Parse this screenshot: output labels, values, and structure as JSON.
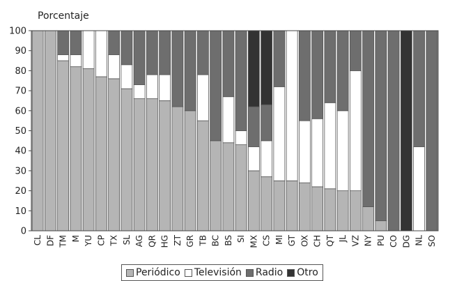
{
  "chart_data": {
    "type": "bar",
    "stacked": true,
    "ylabel": "Porcentaje",
    "ylim": [
      0,
      100
    ],
    "yticks": [
      0,
      10,
      20,
      30,
      40,
      50,
      60,
      70,
      80,
      90,
      100
    ],
    "categories": [
      "CL",
      "DF",
      "TM",
      "M",
      "YU",
      "CP",
      "TX",
      "SL",
      "AG",
      "QR",
      "HG",
      "ZT",
      "GR",
      "TB",
      "BC",
      "BS",
      "SI",
      "MX",
      "CS",
      "MI",
      "GT",
      "OX",
      "CH",
      "QT",
      "JL",
      "VZ",
      "NY",
      "PU",
      "CO",
      "DG",
      "NL",
      "SO"
    ],
    "series": [
      {
        "name": "Periódico",
        "color": "#b5b5b5",
        "values": [
          100,
          100,
          85,
          82,
          81,
          77,
          76,
          71,
          66,
          66,
          65,
          62,
          60,
          55,
          45,
          44,
          43,
          30,
          27,
          25,
          25,
          24,
          22,
          21,
          20,
          20,
          12,
          5,
          0,
          0,
          0,
          0
        ]
      },
      {
        "name": "Televisión",
        "color": "#ffffff",
        "values": [
          0,
          0,
          3,
          6,
          19,
          23,
          12,
          12,
          7,
          12,
          13,
          0,
          0,
          23,
          0,
          23,
          7,
          12,
          18,
          47,
          75,
          31,
          34,
          43,
          40,
          60,
          0,
          0,
          0,
          0,
          42,
          0
        ]
      },
      {
        "name": "Radio",
        "color": "#6e6e6e",
        "values": [
          0,
          0,
          12,
          12,
          0,
          0,
          12,
          17,
          27,
          22,
          22,
          38,
          40,
          22,
          55,
          33,
          50,
          20,
          18,
          28,
          0,
          45,
          44,
          36,
          40,
          20,
          88,
          95,
          100,
          0,
          58,
          100
        ]
      },
      {
        "name": "Otro",
        "color": "#333333",
        "values": [
          0,
          0,
          0,
          0,
          0,
          0,
          0,
          0,
          0,
          0,
          0,
          0,
          0,
          0,
          0,
          0,
          0,
          38,
          37,
          0,
          0,
          0,
          0,
          0,
          0,
          0,
          0,
          0,
          0,
          100,
          0,
          0
        ]
      }
    ],
    "legend": "bottom",
    "grid": false
  }
}
